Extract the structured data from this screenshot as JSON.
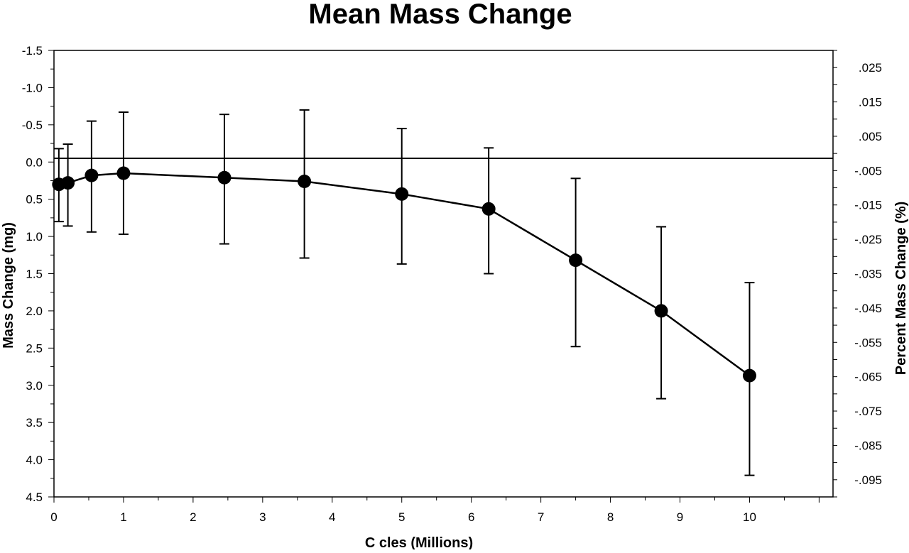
{
  "chart_data": {
    "type": "line",
    "title": "Mean Mass Change",
    "xlabel": "C  cles (Millions)",
    "ylabel": "Mass Change (mg)",
    "y2label": "Percent Mass Change (%)",
    "xlim": [
      0,
      11.2
    ],
    "ylim": [
      -1.5,
      4.5
    ],
    "y_inverted": true,
    "y2lim": [
      0.03,
      -0.1
    ],
    "x_ticks": [
      "0",
      "1",
      "2",
      "3",
      "4",
      "5",
      "6",
      "7",
      "8",
      "9",
      "10"
    ],
    "y_ticks": [
      "-1.5",
      "-1.0",
      "-0.5",
      "0.0",
      "0.5",
      "1.0",
      "1.5",
      "2.0",
      "2.5",
      "3.0",
      "3.5",
      "4.0",
      "4.5"
    ],
    "y2_ticks": [
      ".025",
      ".015",
      ".005",
      "-.005",
      "-.015",
      "-.025",
      "-.035",
      "-.045",
      "-.055",
      "-.065",
      "-.075",
      "-.085",
      "-.095"
    ],
    "reference_line_y": -0.05,
    "grid": false,
    "series": [
      {
        "x": [
          0.07,
          0.2,
          0.54,
          1.0,
          2.45,
          3.6,
          5.0,
          6.25,
          7.5,
          8.73,
          10.0
        ],
        "y": [
          0.3,
          0.28,
          0.18,
          0.15,
          0.21,
          0.26,
          0.43,
          0.63,
          1.32,
          2.0,
          2.87
        ],
        "y_upper": [
          -0.18,
          -0.24,
          -0.55,
          -0.67,
          -0.64,
          -0.7,
          -0.45,
          -0.19,
          0.22,
          0.87,
          1.62
        ],
        "y_lower": [
          0.8,
          0.86,
          0.94,
          0.97,
          1.1,
          1.29,
          1.37,
          1.5,
          2.48,
          3.18,
          4.21
        ]
      }
    ]
  }
}
